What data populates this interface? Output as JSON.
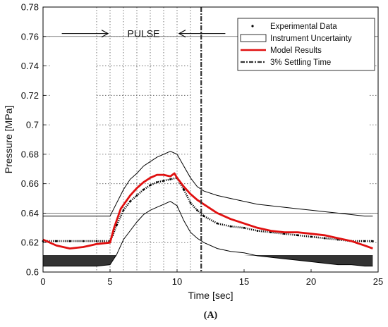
{
  "chart_data": {
    "type": "line",
    "xlabel": "Time [sec]",
    "ylabel": "Pressure [MPa]",
    "panel_label": "(A)",
    "xlim": [
      0,
      25
    ],
    "ylim": [
      0.6,
      0.78
    ],
    "x_ticks": [
      0,
      5,
      10,
      15,
      20,
      25
    ],
    "y_ticks": [
      0.6,
      0.62,
      0.64,
      0.66,
      0.68,
      0.7,
      0.72,
      0.74,
      0.76,
      0.78
    ],
    "grid": "partial-dotted",
    "legend_position": "top-right",
    "legend": [
      {
        "label": "Experimental Data",
        "style": "dots"
      },
      {
        "label": "Instrument Uncertainty",
        "style": "box"
      },
      {
        "label": "Model Results",
        "style": "red-line"
      },
      {
        "label": "3% Settling Time",
        "style": "dash-dot"
      }
    ],
    "annotation": {
      "text": "PULSE",
      "x_start": 5.0,
      "x_end": 10.0,
      "y": 0.762
    },
    "settling_time": 11.8,
    "vertical_dotted_lines": [
      4.0,
      5.0,
      6.0,
      7.0,
      8.0,
      9.0,
      10.0,
      11.0
    ],
    "horizontal_reference_lines": [
      0.76,
      0.64
    ],
    "series": [
      {
        "name": "Experimental Data",
        "x": [
          0,
          1,
          2,
          3,
          4,
          5,
          5.2,
          5.5,
          6,
          6.5,
          7,
          7.5,
          8,
          8.5,
          9,
          9.5,
          10,
          10.5,
          11,
          11.5,
          12,
          13,
          14,
          15,
          16,
          17,
          18,
          19,
          20,
          21,
          22,
          23,
          24,
          24.6
        ],
        "y": [
          0.621,
          0.621,
          0.621,
          0.621,
          0.621,
          0.621,
          0.625,
          0.632,
          0.642,
          0.648,
          0.652,
          0.656,
          0.659,
          0.661,
          0.662,
          0.663,
          0.664,
          0.656,
          0.647,
          0.642,
          0.638,
          0.633,
          0.631,
          0.63,
          0.628,
          0.627,
          0.626,
          0.625,
          0.624,
          0.623,
          0.622,
          0.621,
          0.621,
          0.621
        ]
      },
      {
        "name": "Instrument Uncertainty Upper",
        "x": [
          0,
          1,
          2,
          3,
          4,
          5,
          5.5,
          6,
          6.5,
          7,
          7.5,
          8,
          8.5,
          9,
          9.5,
          10,
          10.5,
          11,
          11.5,
          12,
          13,
          14,
          15,
          16,
          17,
          18,
          19,
          20,
          21,
          22,
          23,
          24,
          24.6
        ],
        "y": [
          0.638,
          0.638,
          0.638,
          0.638,
          0.638,
          0.638,
          0.647,
          0.656,
          0.663,
          0.667,
          0.672,
          0.675,
          0.678,
          0.68,
          0.682,
          0.68,
          0.672,
          0.664,
          0.658,
          0.655,
          0.652,
          0.65,
          0.648,
          0.646,
          0.645,
          0.644,
          0.643,
          0.642,
          0.641,
          0.64,
          0.639,
          0.638,
          0.638
        ]
      },
      {
        "name": "Instrument Uncertainty Lower",
        "x": [
          0,
          1,
          2,
          3,
          4,
          5,
          5.5,
          6,
          6.5,
          7,
          7.5,
          8,
          8.5,
          9,
          9.5,
          10,
          10.5,
          11,
          11.5,
          12,
          13,
          14,
          15,
          16,
          17,
          18,
          19,
          20,
          21,
          22,
          23,
          24,
          24.6
        ],
        "y": [
          0.604,
          0.604,
          0.604,
          0.604,
          0.604,
          0.605,
          0.612,
          0.622,
          0.628,
          0.634,
          0.639,
          0.642,
          0.644,
          0.646,
          0.648,
          0.645,
          0.635,
          0.627,
          0.623,
          0.62,
          0.616,
          0.614,
          0.613,
          0.611,
          0.61,
          0.609,
          0.608,
          0.607,
          0.606,
          0.605,
          0.605,
          0.604,
          0.604
        ]
      },
      {
        "name": "Model Results",
        "x": [
          0,
          1,
          2,
          3,
          4,
          5,
          5.3,
          5.8,
          6.5,
          7,
          7.5,
          8,
          8.5,
          9,
          9.5,
          9.8,
          10,
          10.5,
          11,
          11.5,
          12,
          13,
          14,
          15,
          16,
          17,
          18,
          19,
          20,
          21,
          22,
          23,
          24,
          24.6
        ],
        "y": [
          0.622,
          0.618,
          0.616,
          0.617,
          0.619,
          0.62,
          0.63,
          0.643,
          0.652,
          0.657,
          0.661,
          0.664,
          0.666,
          0.666,
          0.665,
          0.667,
          0.664,
          0.658,
          0.653,
          0.649,
          0.646,
          0.64,
          0.636,
          0.633,
          0.63,
          0.628,
          0.627,
          0.627,
          0.626,
          0.625,
          0.623,
          0.621,
          0.618,
          0.616
        ]
      }
    ]
  }
}
